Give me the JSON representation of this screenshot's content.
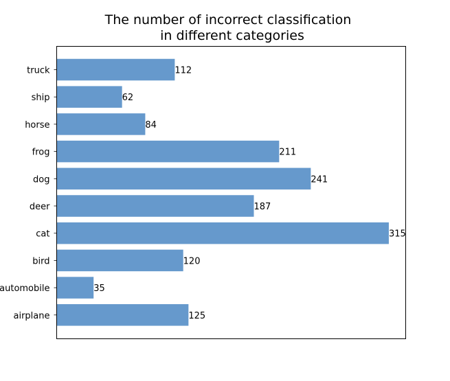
{
  "chart_data": {
    "type": "bar",
    "orientation": "horizontal",
    "title_lines": [
      "The number of incorrect classification",
      "in different categories"
    ],
    "categories": [
      "truck",
      "ship",
      "horse",
      "frog",
      "dog",
      "deer",
      "cat",
      "bird",
      "automobile",
      "airplane"
    ],
    "values": [
      112,
      62,
      84,
      211,
      241,
      187,
      315,
      120,
      35,
      125
    ],
    "xlabel": "",
    "ylabel": "",
    "xlim": [
      0,
      331
    ],
    "x_ticks_visible": false,
    "grid": false,
    "legend": "none",
    "bar_color": "#6699cc",
    "show_value_labels": true
  }
}
